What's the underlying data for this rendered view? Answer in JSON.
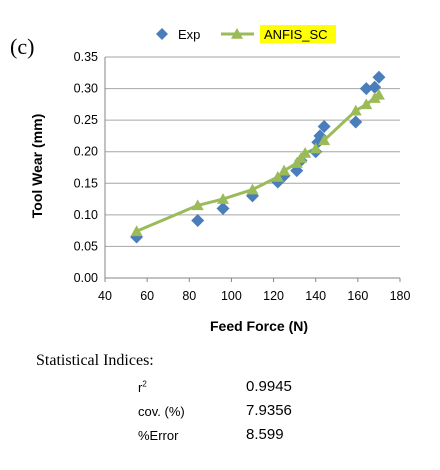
{
  "panel_label": "(c)",
  "chart_data": {
    "type": "scatter",
    "xlabel": "Feed Force (N)",
    "ylabel": "Tool Wear (mm)",
    "xlim": [
      40,
      180
    ],
    "ylim": [
      0,
      0.35
    ],
    "xticks": [
      "40",
      "60",
      "80",
      "100",
      "120",
      "140",
      "160",
      "180"
    ],
    "yticks": [
      "0.00",
      "0.05",
      "0.10",
      "0.15",
      "0.20",
      "0.25",
      "0.30",
      "0.35"
    ],
    "grid": true,
    "legend_position": "top",
    "series": [
      {
        "name": "Exp",
        "marker": "diamond",
        "line": false,
        "color": "#4a7ebb",
        "points": [
          [
            55,
            0.065
          ],
          [
            84,
            0.091
          ],
          [
            96,
            0.11
          ],
          [
            110,
            0.13
          ],
          [
            122,
            0.152
          ],
          [
            125,
            0.162
          ],
          [
            131,
            0.17
          ],
          [
            133,
            0.186
          ],
          [
            140,
            0.2
          ],
          [
            141,
            0.215
          ],
          [
            142,
            0.225
          ],
          [
            144,
            0.24
          ],
          [
            159,
            0.247
          ],
          [
            164,
            0.3
          ],
          [
            168,
            0.302
          ],
          [
            170,
            0.318
          ]
        ]
      },
      {
        "name": "ANFIS_SC",
        "marker": "triangle",
        "line": true,
        "color": "#9bbb59",
        "legend_highlight": "#ffff00",
        "points": [
          [
            55,
            0.074
          ],
          [
            84,
            0.115
          ],
          [
            96,
            0.125
          ],
          [
            110,
            0.14
          ],
          [
            122,
            0.16
          ],
          [
            125,
            0.17
          ],
          [
            131,
            0.182
          ],
          [
            133,
            0.19
          ],
          [
            135,
            0.198
          ],
          [
            140,
            0.205
          ],
          [
            144,
            0.218
          ],
          [
            159,
            0.265
          ],
          [
            164,
            0.275
          ],
          [
            168,
            0.285
          ],
          [
            170,
            0.29
          ]
        ]
      }
    ]
  },
  "stats": {
    "title": "Statistical Indices:",
    "rows": [
      {
        "label": "r",
        "sup": "2",
        "value": "0.9945"
      },
      {
        "label": "cov. (%)",
        "sup": "",
        "value": "7.9356"
      },
      {
        "label": "%Error",
        "sup": "",
        "value": "8.599"
      }
    ]
  }
}
